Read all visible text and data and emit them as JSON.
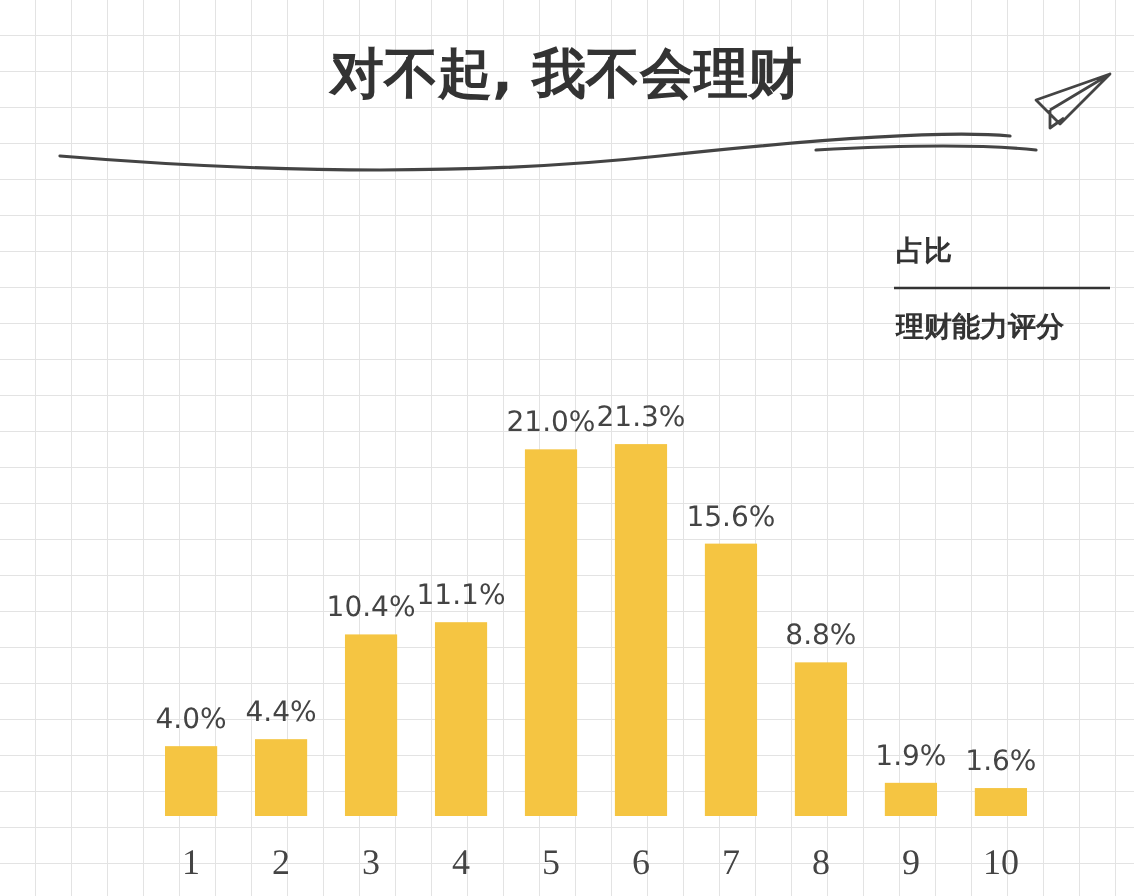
{
  "chart_data": {
    "type": "bar",
    "title": "对不起, 我不会理财",
    "annotations": [
      "占比",
      "理财能力评分"
    ],
    "categories": [
      "1",
      "2",
      "3",
      "4",
      "5",
      "6",
      "7",
      "8",
      "9",
      "10"
    ],
    "values": [
      4.0,
      4.4,
      10.4,
      11.1,
      21.0,
      21.3,
      15.6,
      8.8,
      1.9,
      1.6
    ],
    "value_labels": [
      "4.0%",
      "4.4%",
      "10.4%",
      "11.1%",
      "21.0%",
      "21.3%",
      "15.6%",
      "8.8%",
      "1.9%",
      "1.6%"
    ],
    "color": "#f5c542"
  }
}
